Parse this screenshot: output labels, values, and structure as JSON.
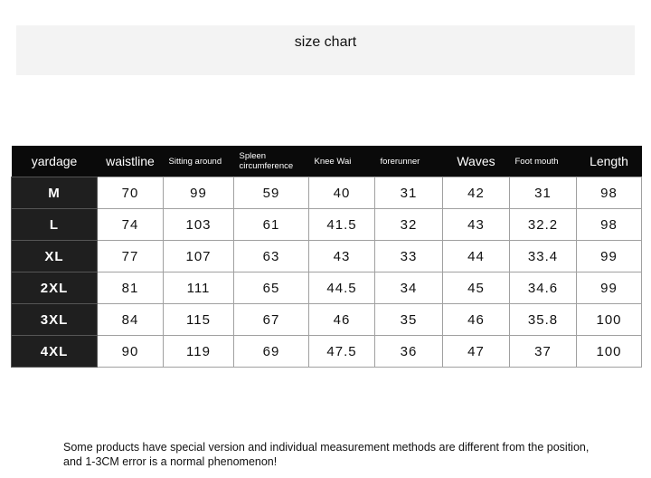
{
  "header": {
    "title": "size chart"
  },
  "table": {
    "columns": [
      "yardage",
      "waistline",
      "Sitting around",
      "Spleen circumference",
      "Knee Wai",
      "forerunner",
      "Waves",
      "Foot mouth",
      "Length"
    ],
    "rows": [
      [
        "M",
        70,
        99,
        59,
        40,
        31,
        42,
        31,
        98
      ],
      [
        "L",
        74,
        103,
        61,
        41.5,
        32,
        43,
        32.2,
        98
      ],
      [
        "XL",
        77,
        107,
        63,
        43,
        33,
        44,
        33.4,
        99
      ],
      [
        "2XL",
        81,
        111,
        65,
        44.5,
        34,
        45,
        34.6,
        99
      ],
      [
        "3XL",
        84,
        115,
        67,
        46,
        35,
        46,
        35.8,
        100
      ],
      [
        "4XL",
        90,
        119,
        69,
        47.5,
        36,
        47,
        37,
        100
      ]
    ]
  },
  "footer": {
    "note": "Some products have special version and individual measurement methods are different from the position, and 1-3CM error is a normal phenomenon!"
  }
}
